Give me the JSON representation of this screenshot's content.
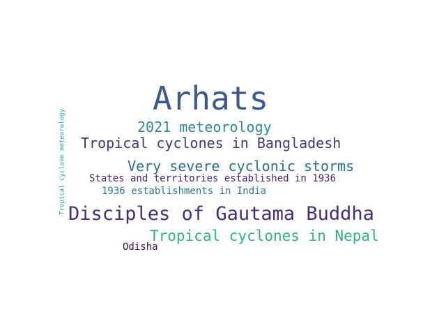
{
  "word_cloud": {
    "words": [
      {
        "id": "arhats",
        "text": "Arhats",
        "color": "#3b5a8a"
      },
      {
        "id": "met2021",
        "text": "2021 meteorology",
        "color": "#2e8a8e"
      },
      {
        "id": "bangladesh",
        "text": "Tropical cyclones in Bangladesh",
        "color": "#46337e"
      },
      {
        "id": "severe",
        "text": "Very severe cyclonic storms",
        "color": "#2f6d8e"
      },
      {
        "id": "states",
        "text": "States and territories established in 1936",
        "color": "#4b2074"
      },
      {
        "id": "est1936",
        "text": "1936 establishments in India",
        "color": "#2c7a8c"
      },
      {
        "id": "disciples",
        "text": "Disciples of Gautama Buddha",
        "color": "#472c7a"
      },
      {
        "id": "nepal",
        "text": "Tropical cyclones in Nepal",
        "color": "#2fb47c"
      },
      {
        "id": "odisha",
        "text": "Odisha",
        "color": "#440a56"
      },
      {
        "id": "tcmet",
        "text": "Tropical cyclone meteorology",
        "color": "#26a3a0"
      }
    ]
  }
}
